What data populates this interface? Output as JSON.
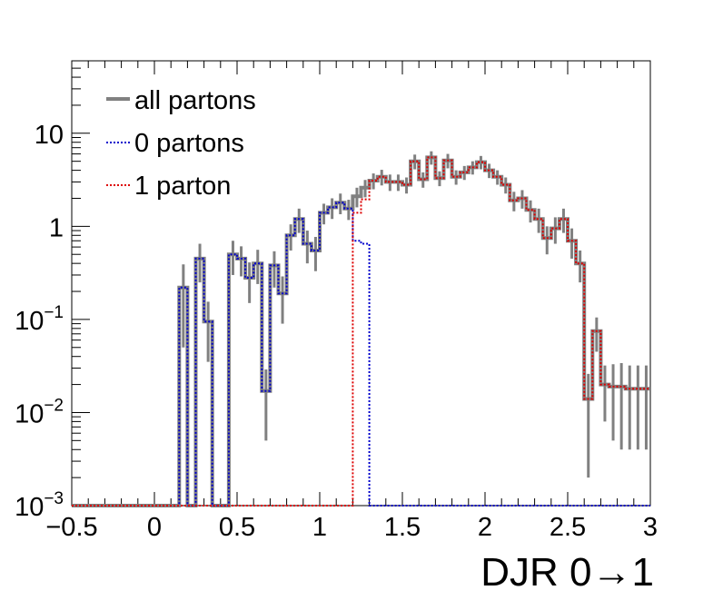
{
  "chart_data": {
    "type": "line",
    "subtype": "step-histogram",
    "title": "",
    "xlabel": "DJR 0→1",
    "ylabel": "",
    "xlim": [
      -0.5,
      3.0
    ],
    "ylim": [
      0.001,
      60
    ],
    "y_scale": "log",
    "grid": false,
    "legend_position": "top-left",
    "x_ticks": [
      {
        "value": -0.5,
        "label": "−0.5"
      },
      {
        "value": 0,
        "label": "0"
      },
      {
        "value": 0.5,
        "label": "0.5"
      },
      {
        "value": 1,
        "label": "1"
      },
      {
        "value": 1.5,
        "label": "1.5"
      },
      {
        "value": 2,
        "label": "2"
      },
      {
        "value": 2.5,
        "label": "2.5"
      },
      {
        "value": 3,
        "label": "3"
      }
    ],
    "y_ticks": [
      {
        "value": 0.001,
        "base": "10",
        "exp": "−3"
      },
      {
        "value": 0.01,
        "base": "10",
        "exp": "−2"
      },
      {
        "value": 0.1,
        "base": "10",
        "exp": "−1"
      },
      {
        "value": 1,
        "base": "1",
        "exp": ""
      },
      {
        "value": 10,
        "base": "10",
        "exp": ""
      }
    ],
    "series": [
      {
        "name": "all partons",
        "color": "#808080",
        "line_style": "solid",
        "x": [
          -0.475,
          -0.425,
          -0.375,
          -0.325,
          -0.275,
          -0.225,
          -0.175,
          -0.125,
          -0.075,
          -0.025,
          0.025,
          0.075,
          0.125,
          0.175,
          0.225,
          0.275,
          0.325,
          0.375,
          0.425,
          0.475,
          0.525,
          0.575,
          0.625,
          0.675,
          0.725,
          0.775,
          0.825,
          0.875,
          0.925,
          0.975,
          1.025,
          1.075,
          1.125,
          1.175,
          1.225,
          1.275,
          1.325,
          1.375,
          1.425,
          1.475,
          1.525,
          1.575,
          1.625,
          1.675,
          1.725,
          1.775,
          1.825,
          1.875,
          1.925,
          1.975,
          2.025,
          2.075,
          2.125,
          2.175,
          2.225,
          2.275,
          2.325,
          2.375,
          2.425,
          2.475,
          2.525,
          2.575,
          2.625,
          2.675,
          2.725,
          2.775,
          2.825,
          2.875,
          2.925,
          2.975
        ],
        "values": [
          0.001,
          0.001,
          0.001,
          0.001,
          0.001,
          0.001,
          0.001,
          0.001,
          0.001,
          0.001,
          0.001,
          0.001,
          0.001,
          0.22,
          0.001,
          0.45,
          0.095,
          0.001,
          0.001,
          0.5,
          0.45,
          0.28,
          0.4,
          0.017,
          0.38,
          0.19,
          0.8,
          1.2,
          0.65,
          0.55,
          1.4,
          1.6,
          1.8,
          1.55,
          2.1,
          2.6,
          3.1,
          3.4,
          3.0,
          3.0,
          2.8,
          5.0,
          3.2,
          5.5,
          3.3,
          5.1,
          3.4,
          3.8,
          4.3,
          4.9,
          4.0,
          3.4,
          2.8,
          1.9,
          2.0,
          1.5,
          1.2,
          0.75,
          0.95,
          1.2,
          0.7,
          0.4,
          0.014,
          0.075,
          0.02,
          0.019,
          0.019,
          0.018,
          0.018,
          0.018
        ],
        "errors": [
          0,
          0,
          0,
          0,
          0,
          0,
          0,
          0,
          0,
          0,
          0,
          0,
          0,
          0.17,
          0,
          0.2,
          0.06,
          0,
          0,
          0.2,
          0.16,
          0.13,
          0.16,
          0.012,
          0.16,
          0.1,
          0.25,
          0.35,
          0.25,
          0.22,
          0.35,
          0.4,
          0.45,
          0.38,
          0.5,
          0.55,
          0.6,
          0.65,
          0.6,
          0.6,
          0.55,
          0.9,
          0.6,
          0.9,
          0.6,
          0.9,
          0.6,
          0.65,
          0.7,
          0.8,
          0.7,
          0.6,
          0.55,
          0.45,
          0.45,
          0.4,
          0.35,
          0.25,
          0.3,
          0.35,
          0.25,
          0.15,
          0.012,
          0.03,
          0.012,
          0.014,
          0.015,
          0.014,
          0.014,
          0.014
        ]
      },
      {
        "name": "0 partons",
        "color": "#0000cc",
        "line_style": "dotted",
        "x": [
          -0.475,
          -0.425,
          -0.375,
          -0.325,
          -0.275,
          -0.225,
          -0.175,
          -0.125,
          -0.075,
          -0.025,
          0.025,
          0.075,
          0.125,
          0.175,
          0.225,
          0.275,
          0.325,
          0.375,
          0.425,
          0.475,
          0.525,
          0.575,
          0.625,
          0.675,
          0.725,
          0.775,
          0.825,
          0.875,
          0.925,
          0.975,
          1.025,
          1.075,
          1.125,
          1.175,
          1.225,
          1.275,
          1.325,
          1.375,
          1.425,
          1.475,
          1.525,
          1.575,
          1.625,
          1.675,
          1.725,
          1.775,
          1.825,
          1.875,
          1.925,
          1.975,
          2.025,
          2.075,
          2.125,
          2.175,
          2.225,
          2.275,
          2.325,
          2.375,
          2.425,
          2.475,
          2.525,
          2.575,
          2.625,
          2.675,
          2.725,
          2.775,
          2.825,
          2.875,
          2.925,
          2.975
        ],
        "values": [
          0.001,
          0.001,
          0.001,
          0.001,
          0.001,
          0.001,
          0.001,
          0.001,
          0.001,
          0.001,
          0.001,
          0.001,
          0.001,
          0.22,
          0.001,
          0.45,
          0.095,
          0.001,
          0.001,
          0.5,
          0.45,
          0.28,
          0.4,
          0.017,
          0.38,
          0.19,
          0.8,
          1.2,
          0.65,
          0.55,
          1.4,
          1.6,
          1.8,
          1.55,
          0.7,
          0.65,
          0.001,
          0.001,
          0.001,
          0.001,
          0.001,
          0.001,
          0.001,
          0.001,
          0.001,
          0.001,
          0.001,
          0.001,
          0.001,
          0.001,
          0.001,
          0.001,
          0.001,
          0.001,
          0.001,
          0.001,
          0.001,
          0.001,
          0.001,
          0.001,
          0.001,
          0.001,
          0.001,
          0.001,
          0.001,
          0.001,
          0.001,
          0.001,
          0.001,
          0.001
        ]
      },
      {
        "name": "1 parton",
        "color": "#dd0000",
        "line_style": "dotted",
        "x": [
          -0.475,
          -0.425,
          -0.375,
          -0.325,
          -0.275,
          -0.225,
          -0.175,
          -0.125,
          -0.075,
          -0.025,
          0.025,
          0.075,
          0.125,
          0.175,
          0.225,
          0.275,
          0.325,
          0.375,
          0.425,
          0.475,
          0.525,
          0.575,
          0.625,
          0.675,
          0.725,
          0.775,
          0.825,
          0.875,
          0.925,
          0.975,
          1.025,
          1.075,
          1.125,
          1.175,
          1.225,
          1.275,
          1.325,
          1.375,
          1.425,
          1.475,
          1.525,
          1.575,
          1.625,
          1.675,
          1.725,
          1.775,
          1.825,
          1.875,
          1.925,
          1.975,
          2.025,
          2.075,
          2.125,
          2.175,
          2.225,
          2.275,
          2.325,
          2.375,
          2.425,
          2.475,
          2.525,
          2.575,
          2.625,
          2.675,
          2.725,
          2.775,
          2.825,
          2.875,
          2.925,
          2.975
        ],
        "values": [
          0.001,
          0.001,
          0.001,
          0.001,
          0.001,
          0.001,
          0.001,
          0.001,
          0.001,
          0.001,
          0.001,
          0.001,
          0.001,
          0.001,
          0.001,
          0.001,
          0.001,
          0.001,
          0.001,
          0.001,
          0.001,
          0.001,
          0.001,
          0.001,
          0.001,
          0.001,
          0.001,
          0.001,
          0.001,
          0.001,
          0.001,
          0.001,
          0.001,
          0.001,
          1.4,
          1.95,
          3.1,
          3.4,
          3.0,
          3.0,
          2.8,
          5.0,
          3.2,
          5.5,
          3.3,
          5.1,
          3.4,
          3.8,
          4.3,
          4.9,
          4.0,
          3.4,
          2.8,
          1.9,
          2.0,
          1.5,
          1.2,
          0.75,
          0.95,
          1.2,
          0.7,
          0.4,
          0.014,
          0.075,
          0.02,
          0.019,
          0.019,
          0.018,
          0.018,
          0.018
        ]
      }
    ]
  }
}
